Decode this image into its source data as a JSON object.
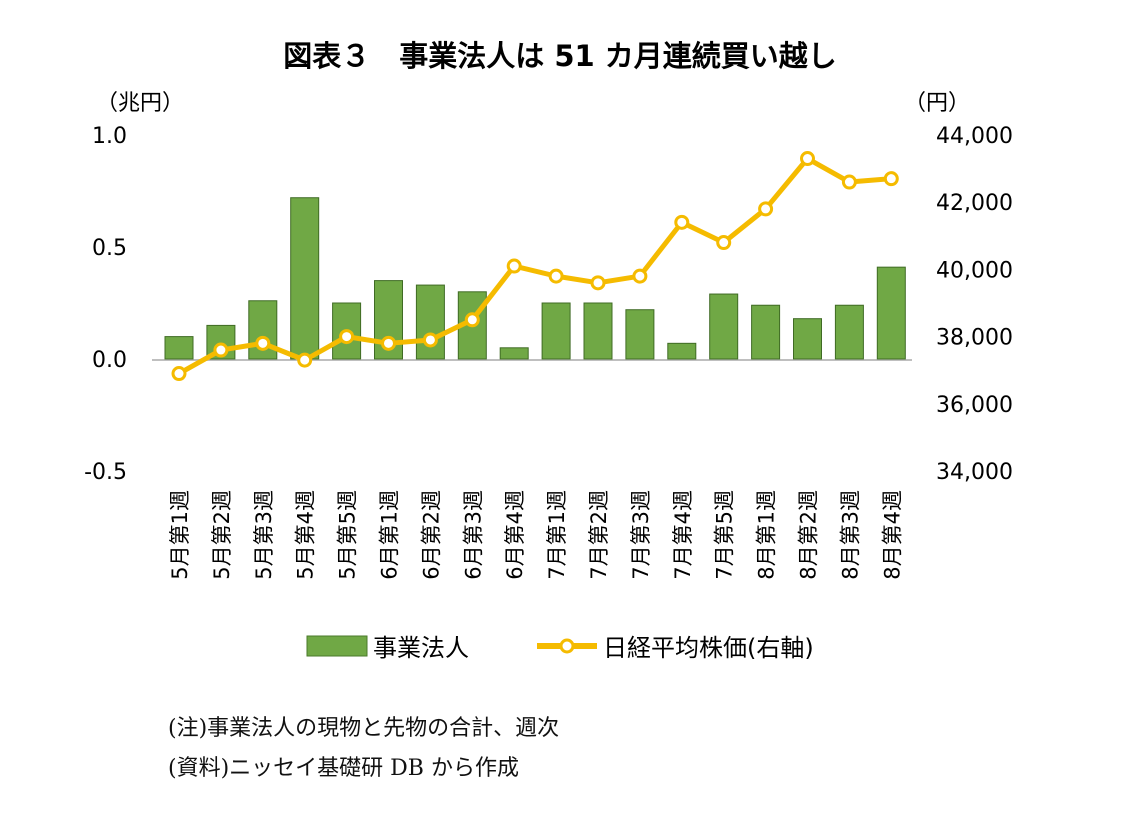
{
  "chart_data": {
    "type": "bar+line",
    "title": "図表３　事業法人は 51 カ月連続買い越し",
    "y_left_unit": "（兆円）",
    "y_right_unit": "（円）",
    "y_left_ticks": [
      "1.0",
      "0.5",
      "0.0",
      "-0.5"
    ],
    "y_right_ticks": [
      "44,000",
      "42,000",
      "40,000",
      "38,000",
      "36,000",
      "34,000"
    ],
    "ylim_left": [
      -0.5,
      1.0
    ],
    "ylim_right": [
      34000,
      44000
    ],
    "categories": [
      "5月第1週",
      "5月第2週",
      "5月第3週",
      "5月第4週",
      "5月第5週",
      "6月第1週",
      "6月第2週",
      "6月第3週",
      "6月第4週",
      "7月第1週",
      "7月第2週",
      "7月第3週",
      "7月第4週",
      "7月第5週",
      "8月第1週",
      "8月第2週",
      "8月第3週",
      "8月第4週"
    ],
    "series": [
      {
        "name": "事業法人",
        "type": "bar",
        "axis": "left",
        "color": "#70a845",
        "values": [
          0.1,
          0.15,
          0.26,
          0.72,
          0.25,
          0.35,
          0.33,
          0.3,
          0.05,
          0.25,
          0.25,
          0.22,
          0.07,
          0.29,
          0.24,
          0.18,
          0.24,
          0.41
        ]
      },
      {
        "name": "日経平均株価(右軸)",
        "type": "line",
        "axis": "right",
        "color": "#f5bb00",
        "values": [
          36900,
          37600,
          37800,
          37300,
          38000,
          37800,
          37900,
          38500,
          40100,
          39800,
          39600,
          39800,
          41400,
          40800,
          41800,
          43300,
          42600,
          42700
        ]
      }
    ],
    "legend_position": "bottom"
  },
  "notes": [
    "(注)事業法人の現物と先物の合計、週次",
    "(資料)ニッセイ基礎研 DB から作成"
  ]
}
